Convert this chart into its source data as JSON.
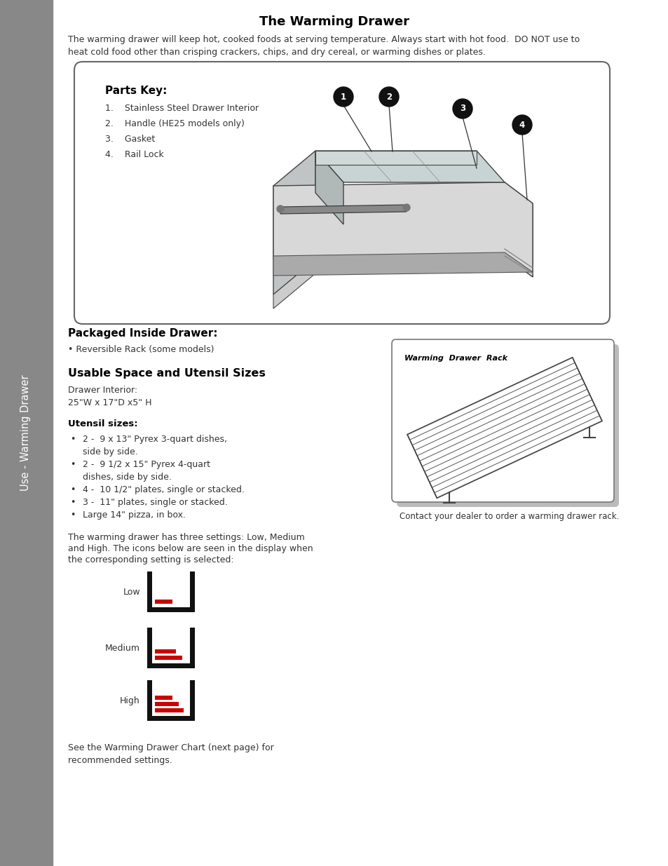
{
  "title": "The Warming Drawer",
  "intro_text": "The warming drawer will keep hot, cooked foods at serving temperature. Always start with hot food.  DO NOT use to\nheat cold food other than crisping crackers, chips, and dry cereal, or warming dishes or plates.",
  "parts_key_title": "Parts Key:",
  "parts_items": [
    "1.    Stainless Steel Drawer Interior",
    "2.    Handle (HE25 models only)",
    "3.    Gasket",
    "4.    Rail Lock"
  ],
  "packaged_title": "Packaged Inside Drawer:",
  "packaged_bullet": "• Reversible Rack (some models)",
  "usable_title": "Usable Space and Utensil Sizes",
  "usable_sub1": "Drawer Interior:",
  "usable_sub2": "25\"W x 17\"D x5\" H",
  "utensil_title": "Utensil sizes:",
  "utensil_items": [
    "2 -  9 x 13\" Pyrex 3-quart dishes,",
    "side by side.",
    "2 -  9 1/2 x 15\" Pyrex 4-quart",
    "dishes, side by side.",
    "4 -  10 1/2\" plates, single or stacked.",
    "3 -  11\" plates, single or stacked.",
    "Large 14\" pizza, in box."
  ],
  "utensil_bullets": [
    true,
    false,
    true,
    false,
    true,
    true,
    true
  ],
  "rack_label": "Warming  Drawer  Rack",
  "rack_contact": "Contact your dealer to order a warming drawer rack.",
  "settings_text_line1": "The warming drawer has three settings: Low, Medium",
  "settings_text_line2": "and High. The icons below are seen in the display when",
  "settings_text_line3": "the corresponding setting is selected:",
  "settings": [
    "Low",
    "Medium",
    "High"
  ],
  "footer_text": "See the Warming Drawer Chart (next page) for\nrecommended settings.",
  "sidebar_text": "Use - Warming Drawer",
  "bg_color": "#ffffff",
  "sidebar_color": "#888888",
  "red_color": "#cc0000",
  "text_color": "#333333"
}
